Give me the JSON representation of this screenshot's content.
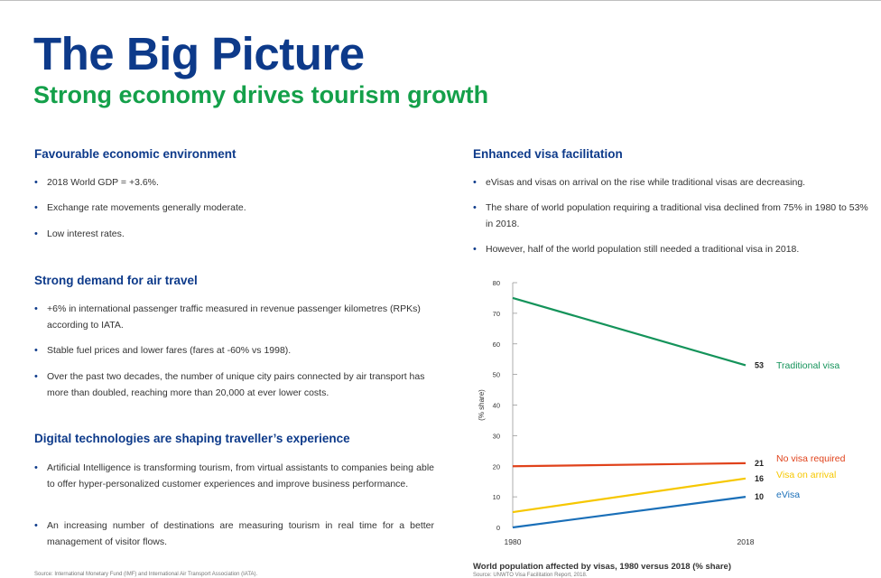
{
  "title": "The Big Picture",
  "subtitle": "Strong economy drives tourism growth",
  "left": {
    "sections": [
      {
        "heading": "Favourable economic environment",
        "bullets": [
          "2018 World GDP = +3.6%.",
          "Exchange rate movements generally moderate.",
          "Low interest rates."
        ]
      },
      {
        "heading": "Strong demand for air travel",
        "bullets": [
          "+6% in international passenger traffic measured in revenue passenger kilometres (RPKs) according to IATA.",
          "Stable fuel prices and lower fares (fares at -60% vs 1998).",
          "Over the past two decades, the number of unique city pairs connected by air transport has more than doubled, reaching more than 20,000 at ever lower costs."
        ]
      },
      {
        "heading": "Digital technologies are shaping traveller’s experience",
        "bullets": [
          "Artificial Intelligence is transforming tourism, from virtual assistants to companies being able to offer hyper-personalized customer experiences and improve business performance.",
          "An increasing number of destinations are measuring tourism in real time for a better management of visitor flows."
        ]
      }
    ],
    "source": "Source: International Monetary Fund (IMF) and International Air Transport Association (IATA)."
  },
  "right": {
    "heading": "Enhanced visa facilitation",
    "bullets": [
      "eVisas and visas on arrival on the rise while traditional visas are decreasing.",
      "The share of world population requiring a traditional visa declined from 75% in 1980 to 53% in 2018.",
      "However, half of the world population still needed a traditional visa in 2018."
    ],
    "caption": "World population affected by visas, 1980 versus 2018 (% share)",
    "source": "Source: UNWTO Visa Facilitation Report, 2018."
  },
  "chart_data": {
    "type": "line",
    "x": [
      1980,
      2018
    ],
    "ylabel": "(% share)",
    "ylim": [
      0,
      80
    ],
    "yticks": [
      0,
      10,
      20,
      30,
      40,
      50,
      60,
      70,
      80
    ],
    "grid": false,
    "series": [
      {
        "name": "Traditional visa",
        "values": [
          75,
          53
        ],
        "end_label": "53",
        "color": "#14935a"
      },
      {
        "name": "No visa required",
        "values": [
          20,
          21
        ],
        "end_label": "21",
        "color": "#e0421b"
      },
      {
        "name": "Visa on arrival",
        "values": [
          5,
          16
        ],
        "end_label": "16",
        "color": "#f6c700"
      },
      {
        "name": "eVisa",
        "values": [
          0,
          10
        ],
        "end_label": "10",
        "color": "#1a6fb8"
      }
    ]
  }
}
